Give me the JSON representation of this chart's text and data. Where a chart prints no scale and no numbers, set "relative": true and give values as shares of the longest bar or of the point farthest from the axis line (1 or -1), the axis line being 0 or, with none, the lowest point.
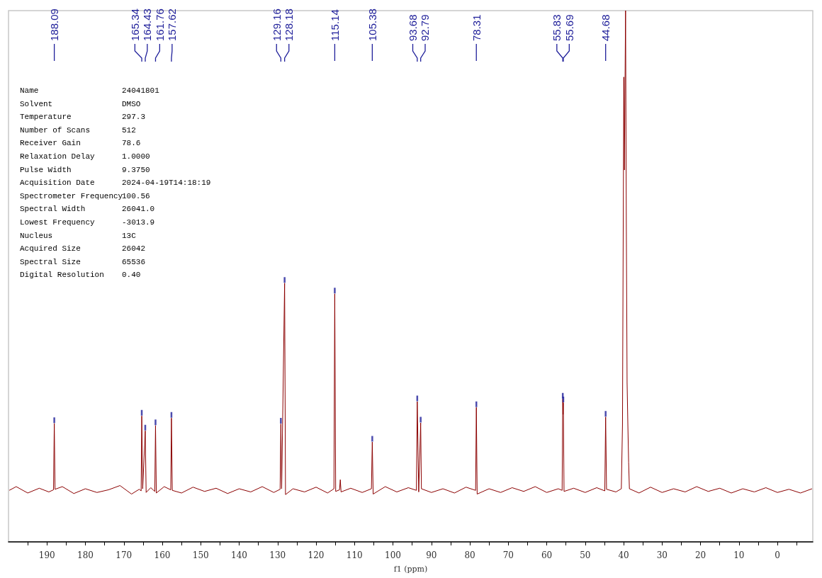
{
  "chart_data": {
    "type": "line",
    "relative": true,
    "xlabel": "f1 (ppm)",
    "xlim": [
      200,
      -9.2
    ],
    "xticks": [
      {
        "value": 195,
        "label": null
      },
      190,
      {
        "value": 185,
        "label": null
      },
      180,
      {
        "value": 175,
        "label": null
      },
      170,
      {
        "value": 165,
        "label": null
      },
      160,
      {
        "value": 155,
        "label": null
      },
      150,
      {
        "value": 145,
        "label": null
      },
      140,
      {
        "value": 135,
        "label": null
      },
      130,
      {
        "value": 125,
        "label": null
      },
      120,
      {
        "value": 115,
        "label": null
      },
      110,
      {
        "value": 105,
        "label": null
      },
      100,
      {
        "value": 95,
        "label": null
      },
      90,
      {
        "value": 85,
        "label": null
      },
      80,
      {
        "value": 75,
        "label": null
      },
      70,
      {
        "value": 65,
        "label": null
      },
      60,
      {
        "value": 55,
        "label": null
      },
      50,
      {
        "value": 45,
        "label": null
      },
      40,
      {
        "value": 35,
        "label": null
      },
      30,
      {
        "value": 25,
        "label": null
      },
      20,
      {
        "value": 15,
        "label": null
      },
      10,
      {
        "value": 5,
        "label": null
      },
      0,
      {
        "value": -5,
        "label": null
      }
    ],
    "x": [
      199.8,
      198,
      195,
      192,
      189.5,
      188.3,
      188.09,
      187.9,
      186,
      183,
      180,
      177,
      174,
      171,
      168,
      166,
      165.5,
      165.34,
      165.1,
      164.43,
      164.2,
      163,
      161.95,
      161.76,
      161.55,
      159.5,
      157.8,
      157.62,
      157.4,
      155,
      152,
      149,
      146,
      143,
      140,
      137,
      134,
      131,
      129.35,
      129.16,
      128.95,
      128.18,
      127.95,
      126,
      123,
      120,
      117,
      115.35,
      115.14,
      114.9,
      113.9,
      113.7,
      113.5,
      111,
      108,
      105.6,
      105.38,
      105.15,
      102,
      99,
      96,
      93.9,
      93.68,
      93.3,
      92.79,
      92.6,
      90,
      87,
      84,
      81,
      78.5,
      78.31,
      78.1,
      75,
      72,
      69,
      66,
      63,
      60,
      57,
      56.0,
      55.83,
      55.76,
      55.69,
      55.5,
      53,
      50,
      47,
      44.9,
      44.68,
      44.45,
      42,
      40.6,
      40.3,
      40.1,
      39.95,
      39.8,
      39.5,
      39.3,
      39.1,
      38.9,
      38.7,
      38.5,
      36,
      33,
      30,
      27,
      24,
      21,
      18,
      15,
      12,
      9,
      6,
      3,
      0,
      -3,
      -6,
      -9
    ],
    "series": [
      {
        "color": "#8b0000",
        "values": [
          0.097,
          0.104,
          0.092,
          0.101,
          0.094,
          0.098,
          0.223,
          0.099,
          0.104,
          0.091,
          0.1,
          0.093,
          0.098,
          0.106,
          0.09,
          0.099,
          0.096,
          0.237,
          0.1,
          0.209,
          0.093,
          0.102,
          0.095,
          0.219,
          0.092,
          0.104,
          0.098,
          0.233,
          0.097,
          0.092,
          0.103,
          0.095,
          0.101,
          0.091,
          0.1,
          0.094,
          0.104,
          0.093,
          0.099,
          0.222,
          0.1,
          0.487,
          0.089,
          0.1,
          0.094,
          0.103,
          0.092,
          0.1,
          0.467,
          0.095,
          0.098,
          0.117,
          0.094,
          0.101,
          0.093,
          0.1,
          0.188,
          0.09,
          0.104,
          0.094,
          0.102,
          0.097,
          0.264,
          0.094,
          0.224,
          0.1,
          0.093,
          0.1,
          0.092,
          0.103,
          0.097,
          0.253,
          0.09,
          0.1,
          0.093,
          0.102,
          0.095,
          0.104,
          0.093,
          0.1,
          0.097,
          0.269,
          0.24,
          0.262,
          0.095,
          0.101,
          0.093,
          0.102,
          0.096,
          0.235,
          0.099,
          0.094,
          0.1,
          0.22,
          0.6,
          0.875,
          0.7,
          1,
          0.6,
          0.3,
          0.22,
          0.15,
          0.1,
          0.092,
          0.103,
          0.093,
          0.1,
          0.094,
          0.104,
          0.095,
          0.101,
          0.092,
          0.1,
          0.094,
          0.102,
          0.093,
          0.099,
          0.092,
          0.1
        ]
      },
      {
        "type": "scatter",
        "color": "#1f1f9a",
        "x": [
          188.09,
          165.34,
          164.43,
          161.76,
          157.62,
          129.16,
          128.18,
          115.14,
          105.38,
          93.68,
          92.79,
          78.31,
          55.83,
          55.69,
          44.68
        ],
        "values": [
          0.229,
          0.243,
          0.215,
          0.225,
          0.239,
          0.228,
          0.493,
          0.473,
          0.194,
          0.27,
          0.23,
          0.259,
          0.275,
          0.268,
          0.241
        ]
      }
    ],
    "annotations": [
      "188.09",
      "165.34",
      "164.43",
      "161.76",
      "157.62",
      "129.16",
      "128.18",
      "115.14",
      "105.38",
      "93.68",
      "92.79",
      "78.31",
      "55.83",
      "55.69",
      "44.68",
      "Name",
      "24041801",
      "Solvent",
      "DMSO",
      "Temperature",
      "297.3",
      "Number of Scans",
      "512",
      "Receiver Gain",
      "78.6",
      "Relaxation Delay",
      "1.0000",
      "Pulse Width",
      "9.3750",
      "Acquisition Date",
      "2024-04-19T14:18:19",
      "Spectrometer Frequency",
      "100.56",
      "Spectral Width",
      "26041.0",
      "Lowest Frequency",
      "-3013.9",
      "Nucleus",
      "13C",
      "Acquired Size",
      "26042",
      "Spectral Size",
      "65536",
      "Digital Resolution",
      "0.40"
    ]
  }
}
